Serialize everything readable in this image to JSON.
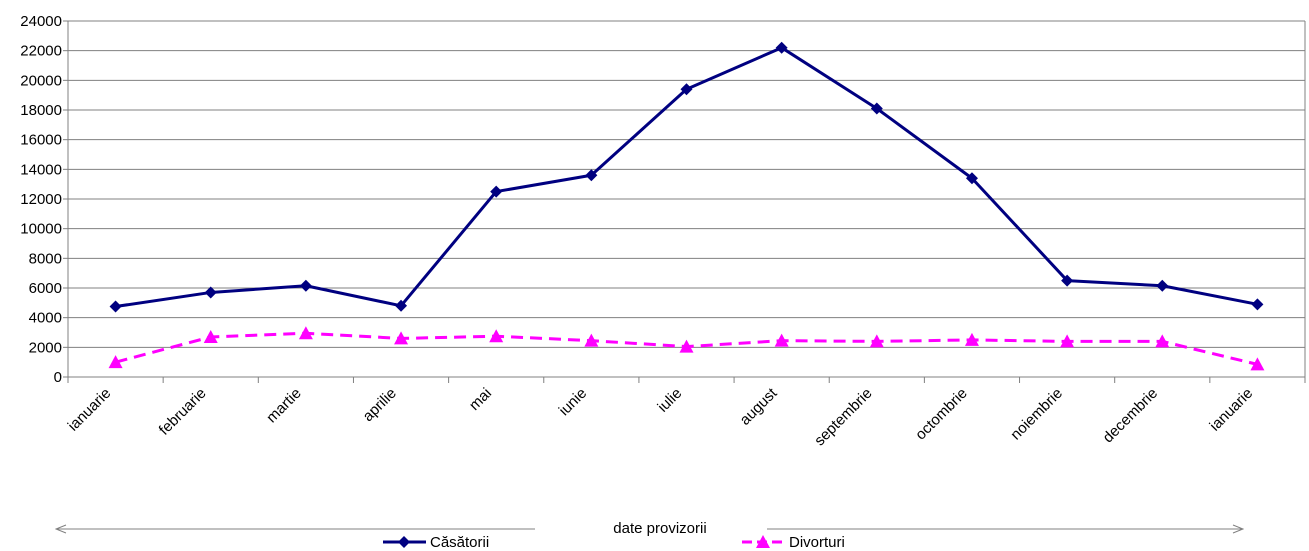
{
  "chart_data": {
    "type": "line",
    "categories": [
      "ianuarie",
      "februarie",
      "martie",
      "aprilie",
      "mai",
      "iunie",
      "iulie",
      "august",
      "septembrie",
      "octombrie",
      "noiembrie",
      "decembrie",
      "ianuarie"
    ],
    "series": [
      {
        "name": "Căsătorii",
        "color": "#000080",
        "marker": "diamond",
        "line_style": "solid",
        "values": [
          4750,
          5700,
          6150,
          4800,
          12500,
          13600,
          19400,
          22200,
          18100,
          13400,
          6500,
          6150,
          4900
        ]
      },
      {
        "name": "Divorturi",
        "color": "#ff00ff",
        "marker": "triangle",
        "line_style": "dashed",
        "values": [
          1000,
          2700,
          2950,
          2600,
          2750,
          2450,
          2050,
          2450,
          2400,
          2500,
          2400,
          2400,
          850
        ]
      }
    ],
    "ylim": [
      0,
      24000
    ],
    "yticks": [
      0,
      2000,
      4000,
      6000,
      8000,
      10000,
      12000,
      14000,
      16000,
      18000,
      20000,
      22000,
      24000
    ],
    "grid": true,
    "legend_position": "bottom",
    "annotation": {
      "text": "date provizorii",
      "style": "double-headed arrow below x axis"
    },
    "title": "",
    "xlabel": "",
    "ylabel": ""
  }
}
